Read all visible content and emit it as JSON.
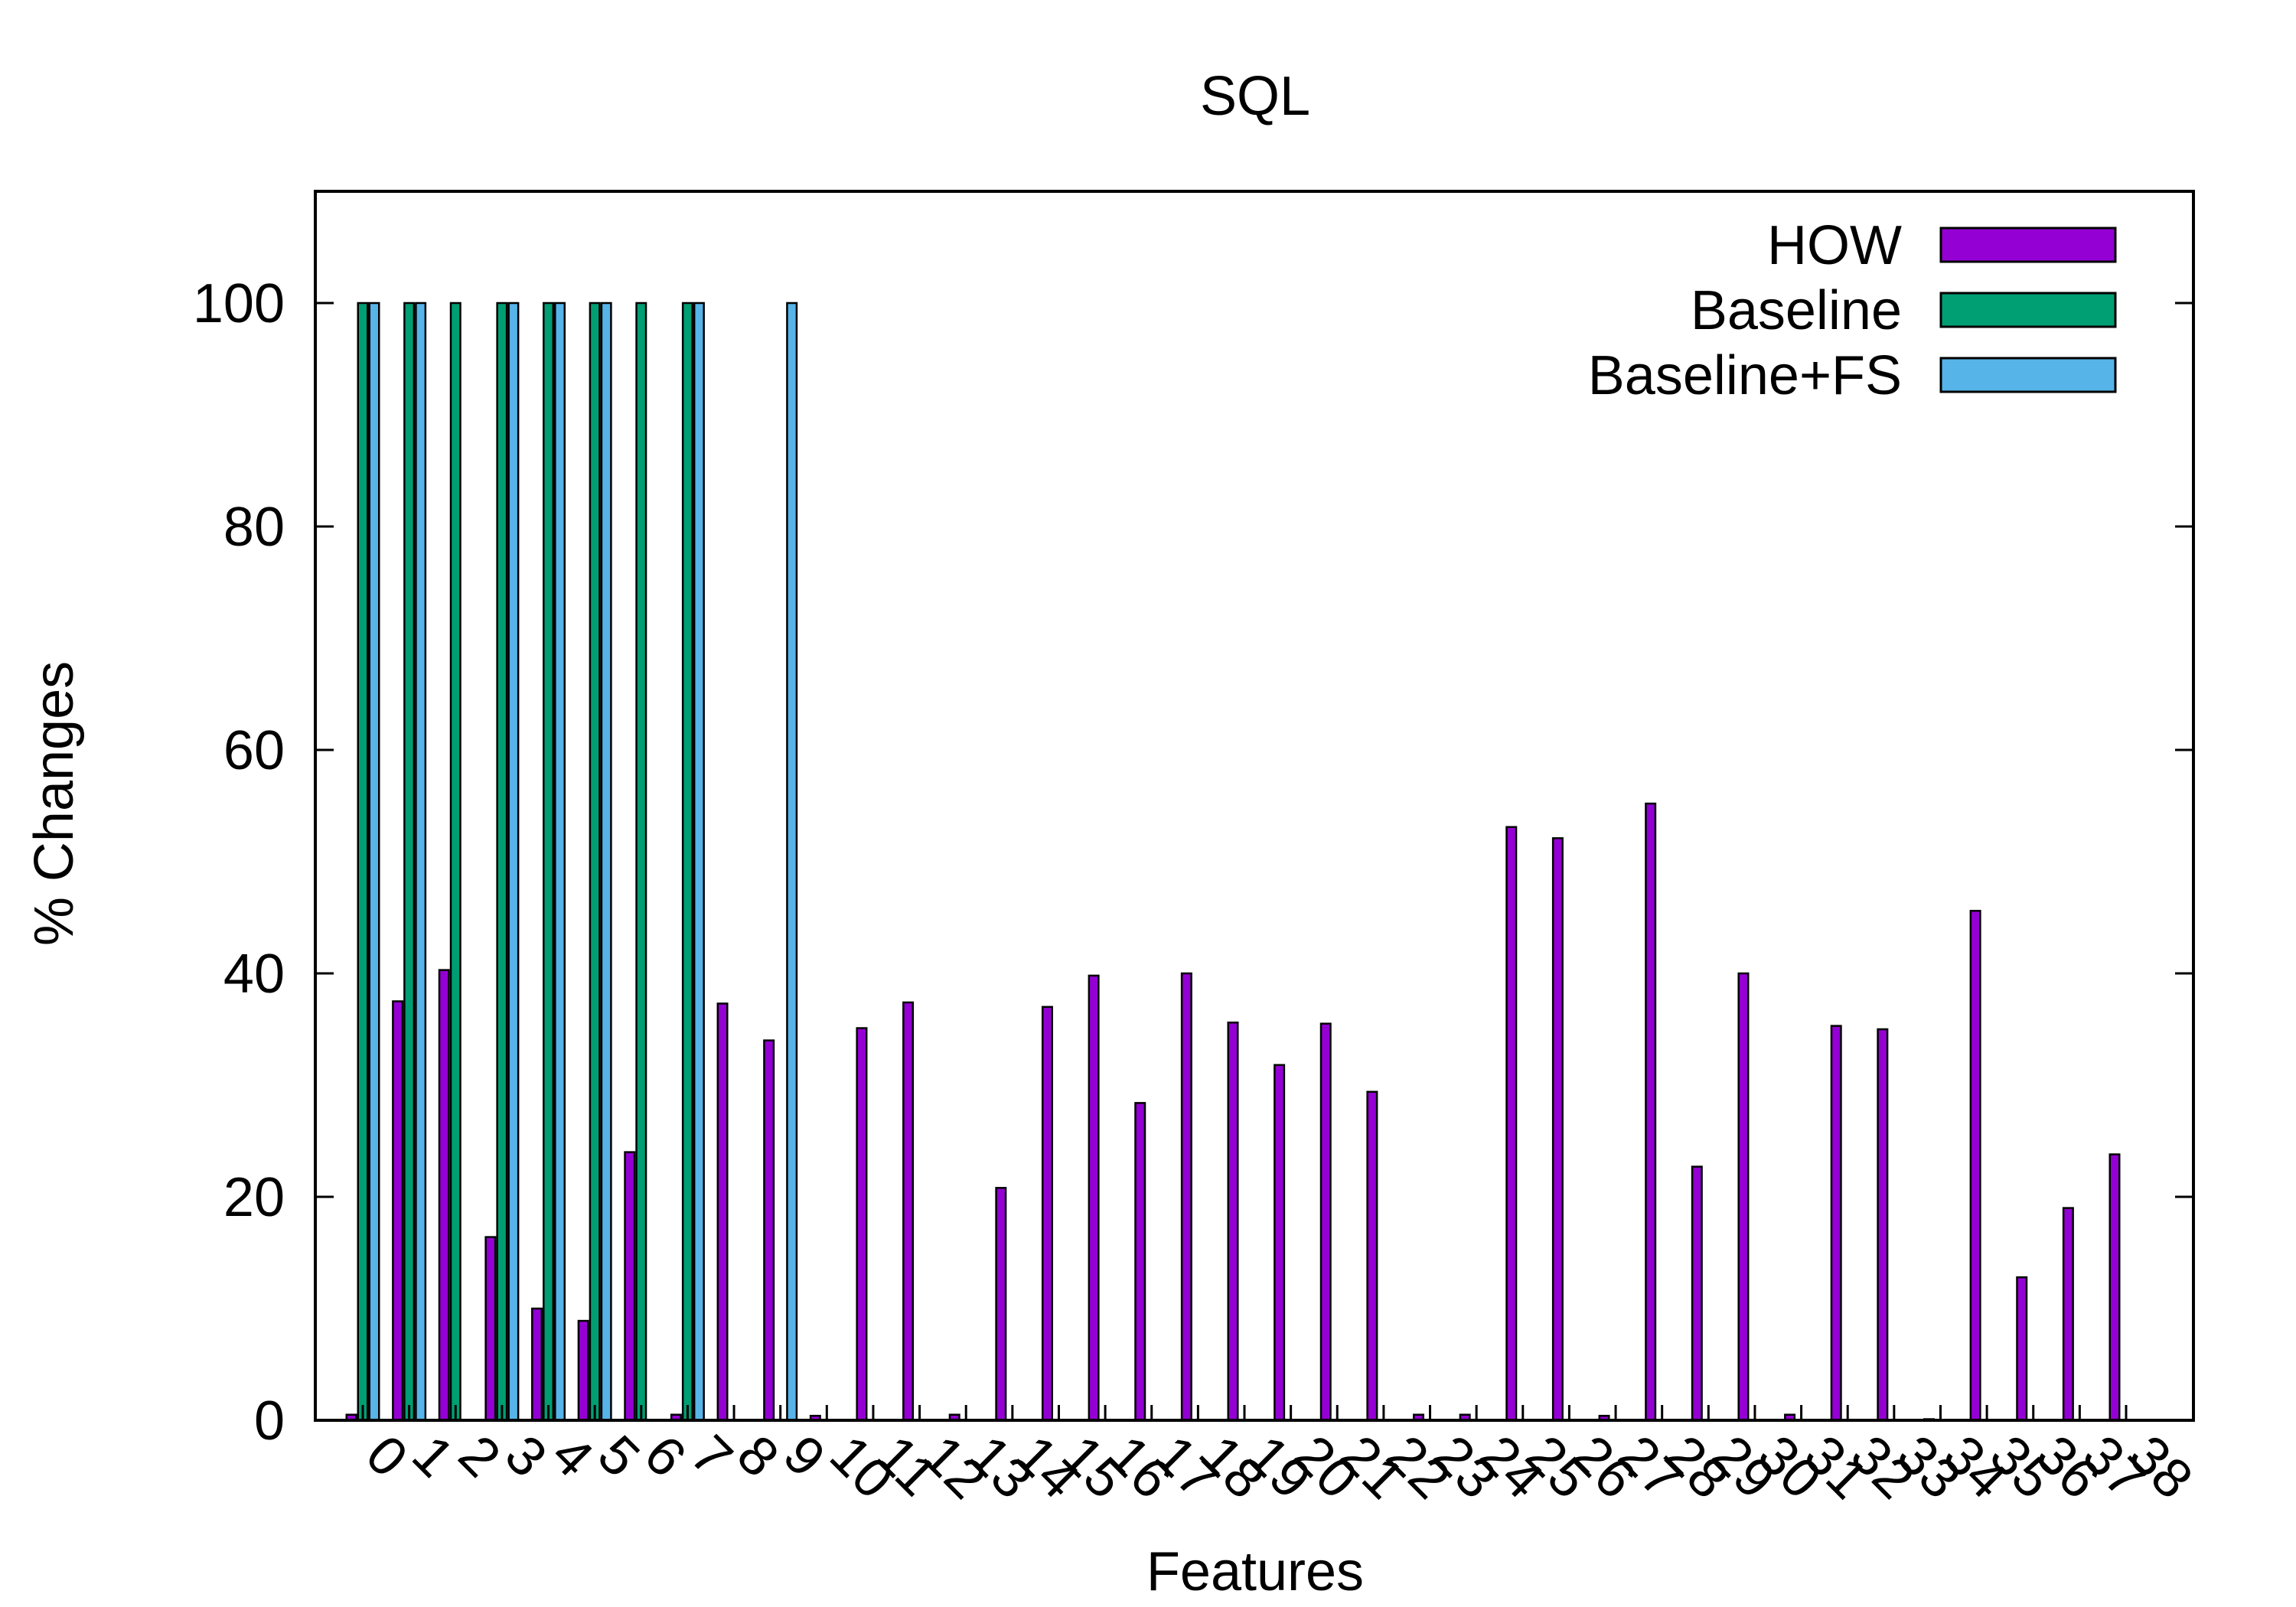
{
  "chart_data": {
    "type": "bar",
    "title": "SQL",
    "xlabel": "Features",
    "ylabel": "% Changes",
    "ylim": [
      0,
      110
    ],
    "yticks": [
      0,
      20,
      40,
      60,
      80,
      100
    ],
    "categories": [
      "0",
      "1",
      "2",
      "3",
      "4",
      "5",
      "6",
      "7",
      "8",
      "9",
      "10",
      "11",
      "12",
      "13",
      "14",
      "15",
      "16",
      "17",
      "18",
      "19",
      "20",
      "21",
      "22",
      "23",
      "24",
      "25",
      "26",
      "27",
      "28",
      "29",
      "30",
      "31",
      "32",
      "33",
      "34",
      "35",
      "36",
      "37",
      "38"
    ],
    "legend_position": "top-right",
    "grid": false,
    "series": [
      {
        "name": "HOW",
        "color": "#9400d3",
        "values": [
          0.5,
          37.5,
          40.3,
          16.4,
          10.0,
          8.9,
          24.0,
          0.5,
          37.3,
          34.0,
          0.4,
          35.1,
          37.4,
          0.5,
          20.8,
          37.0,
          39.8,
          28.4,
          40.0,
          35.6,
          31.8,
          35.5,
          29.4,
          0.5,
          0.5,
          53.1,
          52.1,
          0.4,
          55.2,
          22.7,
          40.0,
          0.5,
          35.3,
          35.0,
          0.1,
          45.6,
          12.8,
          19.0,
          23.8
        ]
      },
      {
        "name": "Baseline",
        "color": "#009e73",
        "values": [
          100,
          100,
          100,
          100,
          100,
          100,
          100,
          100,
          0,
          0,
          0,
          0,
          0,
          0,
          0,
          0,
          0,
          0,
          0,
          0,
          0,
          0,
          0,
          0,
          0,
          0,
          0,
          0,
          0,
          0,
          0,
          0,
          0,
          0,
          0,
          0,
          0,
          0,
          0
        ]
      },
      {
        "name": "Baseline+FS",
        "color": "#56b4e9",
        "values": [
          100,
          100,
          0,
          100,
          100,
          100,
          0,
          100,
          0,
          100,
          0,
          0,
          0,
          0,
          0,
          0,
          0,
          0,
          0,
          0,
          0,
          0,
          0,
          0,
          0,
          0,
          0,
          0,
          0,
          0,
          0,
          0,
          0,
          0,
          0,
          0,
          0,
          0,
          0
        ]
      }
    ]
  }
}
